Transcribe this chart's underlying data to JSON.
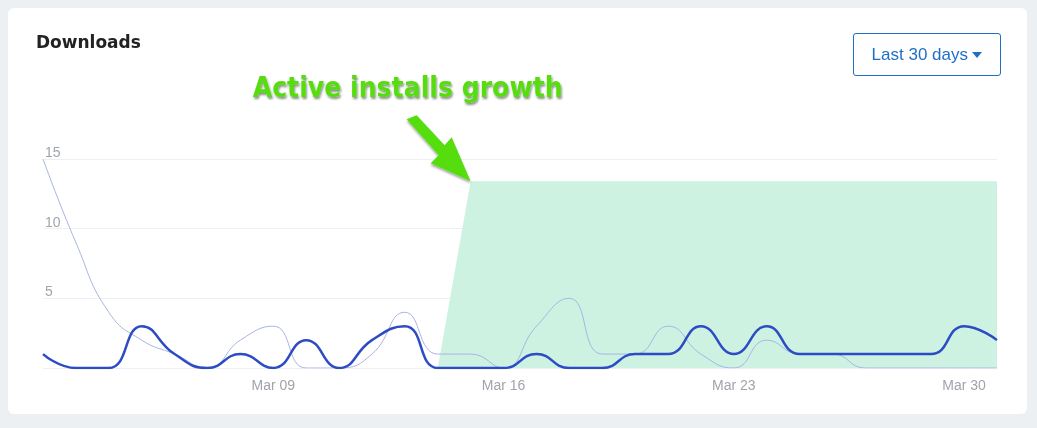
{
  "chart_data": {
    "type": "line",
    "title": "Downloads",
    "x": [
      "--03-02",
      "--03-03",
      "--03-04",
      "--03-05",
      "--03-06",
      "--03-07",
      "--03-08",
      "--03-09",
      "--03-10",
      "--03-11",
      "--03-12",
      "--03-13",
      "--03-14",
      "--03-15",
      "--03-16",
      "--03-17",
      "--03-18",
      "--03-19",
      "--03-20",
      "--03-21",
      "--03-22",
      "--03-23",
      "--03-24",
      "--03-25",
      "--03-26",
      "--03-27",
      "--03-28",
      "--03-29",
      "--03-30",
      "--03-31"
    ],
    "series": [
      {
        "type": "area",
        "color": "#cdf2e2",
        "values": [
          null,
          null,
          null,
          null,
          null,
          null,
          null,
          null,
          null,
          null,
          null,
          null,
          0,
          13.4,
          13.4,
          13.4,
          13.4,
          13.4,
          13.4,
          13.4,
          13.4,
          13.4,
          13.4,
          13.4,
          13.4,
          13.4,
          13.4,
          13.4,
          13.4,
          13.4
        ]
      },
      {
        "color": "#a9b4e2",
        "values": [
          15,
          9,
          4,
          2,
          1,
          0,
          2,
          3,
          0,
          0,
          1,
          4,
          1,
          1,
          0,
          3,
          5,
          1,
          1,
          3,
          1,
          0,
          2,
          1,
          1,
          0,
          0,
          0,
          0,
          0
        ]
      },
      {
        "color": "#2e4bc6",
        "values": [
          1,
          0,
          0,
          3,
          1,
          0,
          1,
          0,
          2,
          0,
          2,
          3,
          0,
          0,
          0,
          1,
          0,
          0,
          1,
          1,
          3,
          1,
          3,
          1,
          1,
          1,
          1,
          1,
          3,
          2
        ]
      }
    ],
    "xlim": [
      "--03-02",
      "--03-31"
    ],
    "xticks": [
      {
        "value": "--03-09",
        "label": "Mar 09"
      },
      {
        "value": "--03-16",
        "label": "Mar 16"
      },
      {
        "value": "--03-23",
        "label": "Mar 23"
      },
      {
        "value": "--03-30",
        "label": "Mar 30"
      }
    ],
    "ylim": [
      0,
      15
    ],
    "yticks": [
      {
        "value": 0,
        "label": null
      },
      5,
      10,
      15
    ],
    "grid": "y",
    "marker": "none",
    "line_style": "solid",
    "annotations": [
      {
        "text": "Active installs growth",
        "x": "--03-15",
        "y": 13.4
      },
      "Last 30 days"
    ]
  }
}
